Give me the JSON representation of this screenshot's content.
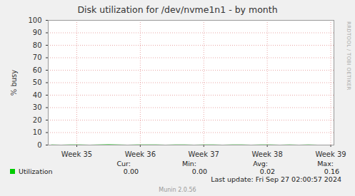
{
  "chart_data": {
    "type": "line",
    "title": "Disk utilization for /dev/nvme1n1 - by month",
    "y_label": "% busy",
    "x": [
      34.6,
      34.75,
      34.9,
      35.05,
      35.2,
      35.35,
      35.5,
      35.65,
      35.8,
      35.95,
      36.1,
      36.25,
      36.4,
      36.55,
      36.7,
      36.85,
      37.0,
      37.15,
      37.3,
      37.45,
      37.6,
      37.75,
      37.9,
      38.05,
      38.2,
      38.35,
      38.5,
      38.65,
      38.8,
      38.95
    ],
    "series": [
      {
        "name": "Utilization",
        "color": "#00cc00",
        "values": [
          0.02,
          0.01,
          0.03,
          0.02,
          0.01,
          0.02,
          0.16,
          0.02,
          0.01,
          0.02,
          0.03,
          0.02,
          0.01,
          0.02,
          0.02,
          0.01,
          0.03,
          0.02,
          0.01,
          0.02,
          0.02,
          0.01,
          0.02,
          0.03,
          0.01,
          0.02,
          0.01,
          0.02,
          0.01,
          0.0
        ],
        "stats": [
          {
            "name": "Cur:",
            "value": 0,
            "label": "0.00"
          },
          {
            "name": "Min:",
            "value": 0,
            "label": "0.00"
          },
          {
            "name": "Avg:",
            "value": 0.02,
            "label": "0.02"
          },
          {
            "name": "Max:",
            "value": 0.16,
            "label": "0.16"
          }
        ]
      }
    ],
    "xlim": [
      34.55,
      39.05
    ],
    "xticks": [
      {
        "value": 35,
        "label": "Week 35"
      },
      {
        "value": 36,
        "label": "Week 36"
      },
      {
        "value": 37,
        "label": "Week 37"
      },
      {
        "value": 38,
        "label": "Week 38"
      },
      {
        "value": 39,
        "label": "Week 39"
      }
    ],
    "ylim": [
      0,
      100
    ],
    "yticks": [
      0,
      10,
      20,
      30,
      40,
      50,
      60,
      70,
      80,
      90,
      100
    ],
    "grid": true,
    "legend": "bottom",
    "last_update": "Last update: Fri Sep 27 02:00:57 2024",
    "footer": "Munin 2.0.56",
    "watermark": "RRDTOOL / TOBI OETIKER"
  }
}
